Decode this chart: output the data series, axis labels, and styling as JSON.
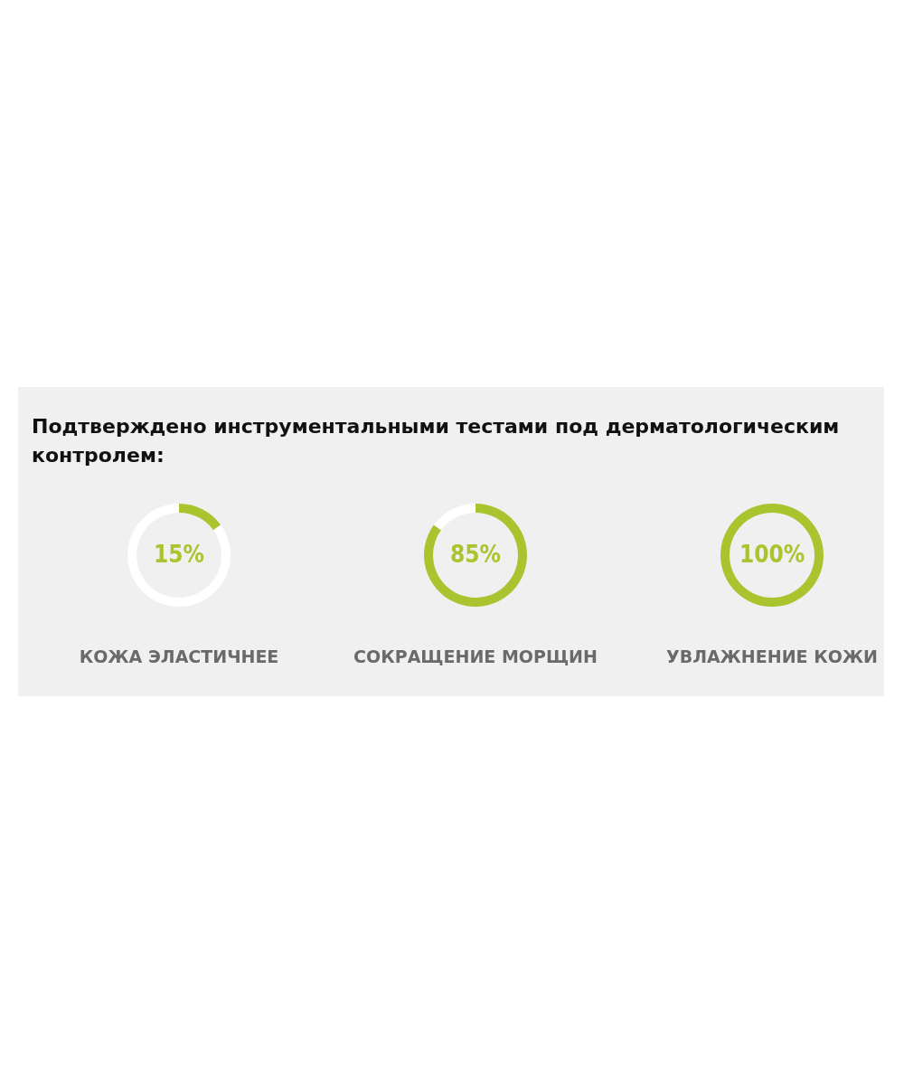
{
  "chart_data": [
    {
      "type": "donut",
      "title": "Подтверждено инструментальными тестами под дерматологическим контролем:",
      "xlabel": "КОЖА ЭЛАСТИЧНЕЕ",
      "categories": [
        null,
        null
      ],
      "values": [
        15,
        85
      ],
      "colors": [
        "#a9c42f",
        "#ffffff"
      ],
      "value_labels": [
        "15%",
        null
      ]
    },
    {
      "type": "donut",
      "xlabel": "СОКРАЩЕНИЕ МОРЩИН",
      "categories": [
        null,
        null
      ],
      "values": [
        85,
        15
      ],
      "colors": [
        "#a9c42f",
        "#ffffff"
      ],
      "value_labels": [
        "85%",
        null
      ]
    },
    {
      "type": "donut",
      "xlabel": "УВЛАЖНЕНИЕ КОЖИ",
      "categories": [
        null,
        null
      ],
      "values": [
        100,
        0
      ],
      "colors": [
        "#a9c42f",
        "#ffffff"
      ],
      "value_labels": [
        "100%",
        null
      ]
    }
  ]
}
